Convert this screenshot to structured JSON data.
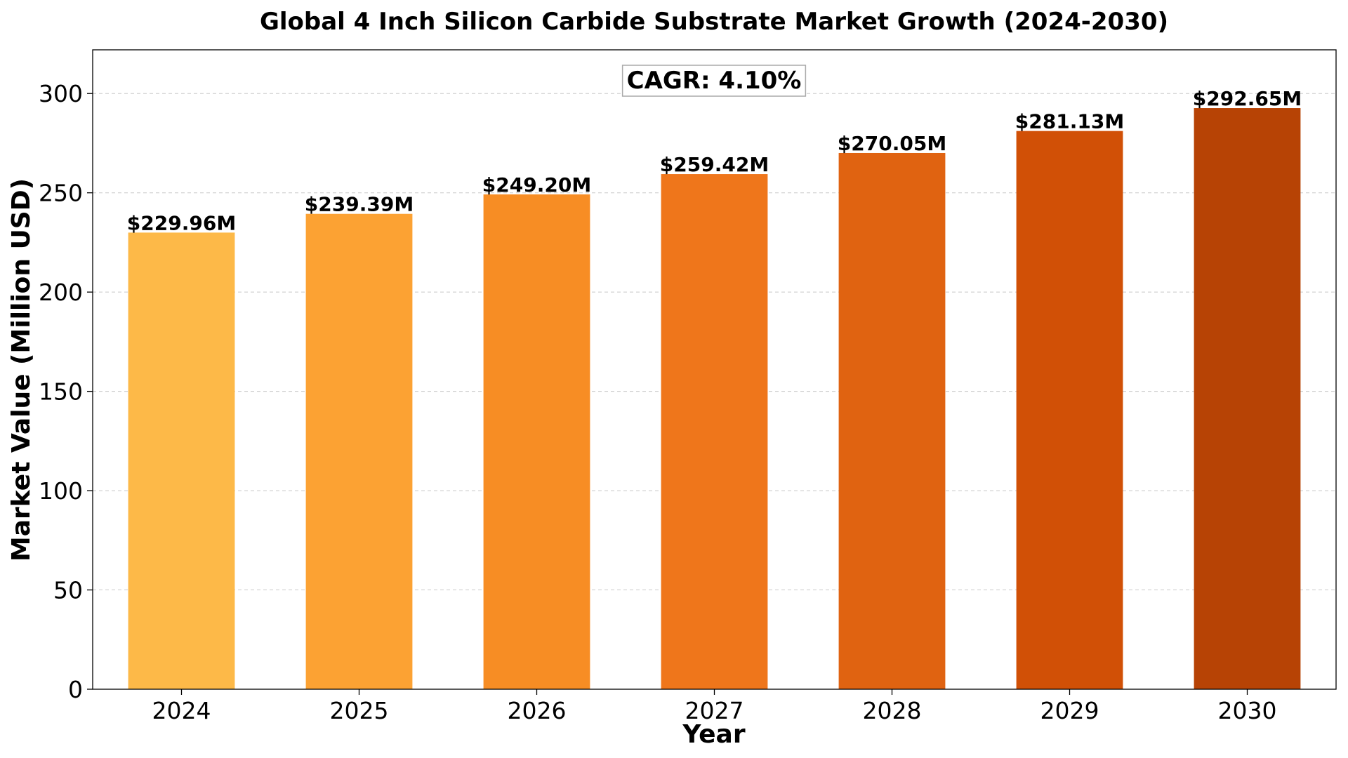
{
  "chart_data": {
    "type": "bar",
    "title": "Global 4 Inch Silicon Carbide Substrate Market Growth (2024-2030)",
    "xlabel": "Year",
    "ylabel": "Market Value (Million USD)",
    "categories": [
      "2024",
      "2025",
      "2026",
      "2027",
      "2028",
      "2029",
      "2030"
    ],
    "values": [
      229.96,
      239.39,
      249.2,
      259.42,
      270.05,
      281.13,
      292.65
    ],
    "data_labels": [
      "$229.96M",
      "$239.39M",
      "$249.20M",
      "$259.42M",
      "$270.05M",
      "$281.13M",
      "$292.65M"
    ],
    "colors": [
      "#FDB948",
      "#FCA233",
      "#F78D24",
      "#EF761B",
      "#E06311",
      "#D15006",
      "#B74305"
    ],
    "ylim": [
      0,
      322
    ],
    "yticks": [
      0,
      50,
      100,
      150,
      200,
      250,
      300
    ],
    "grid": "y-dashed",
    "annotation": "CAGR: 4.10%"
  }
}
